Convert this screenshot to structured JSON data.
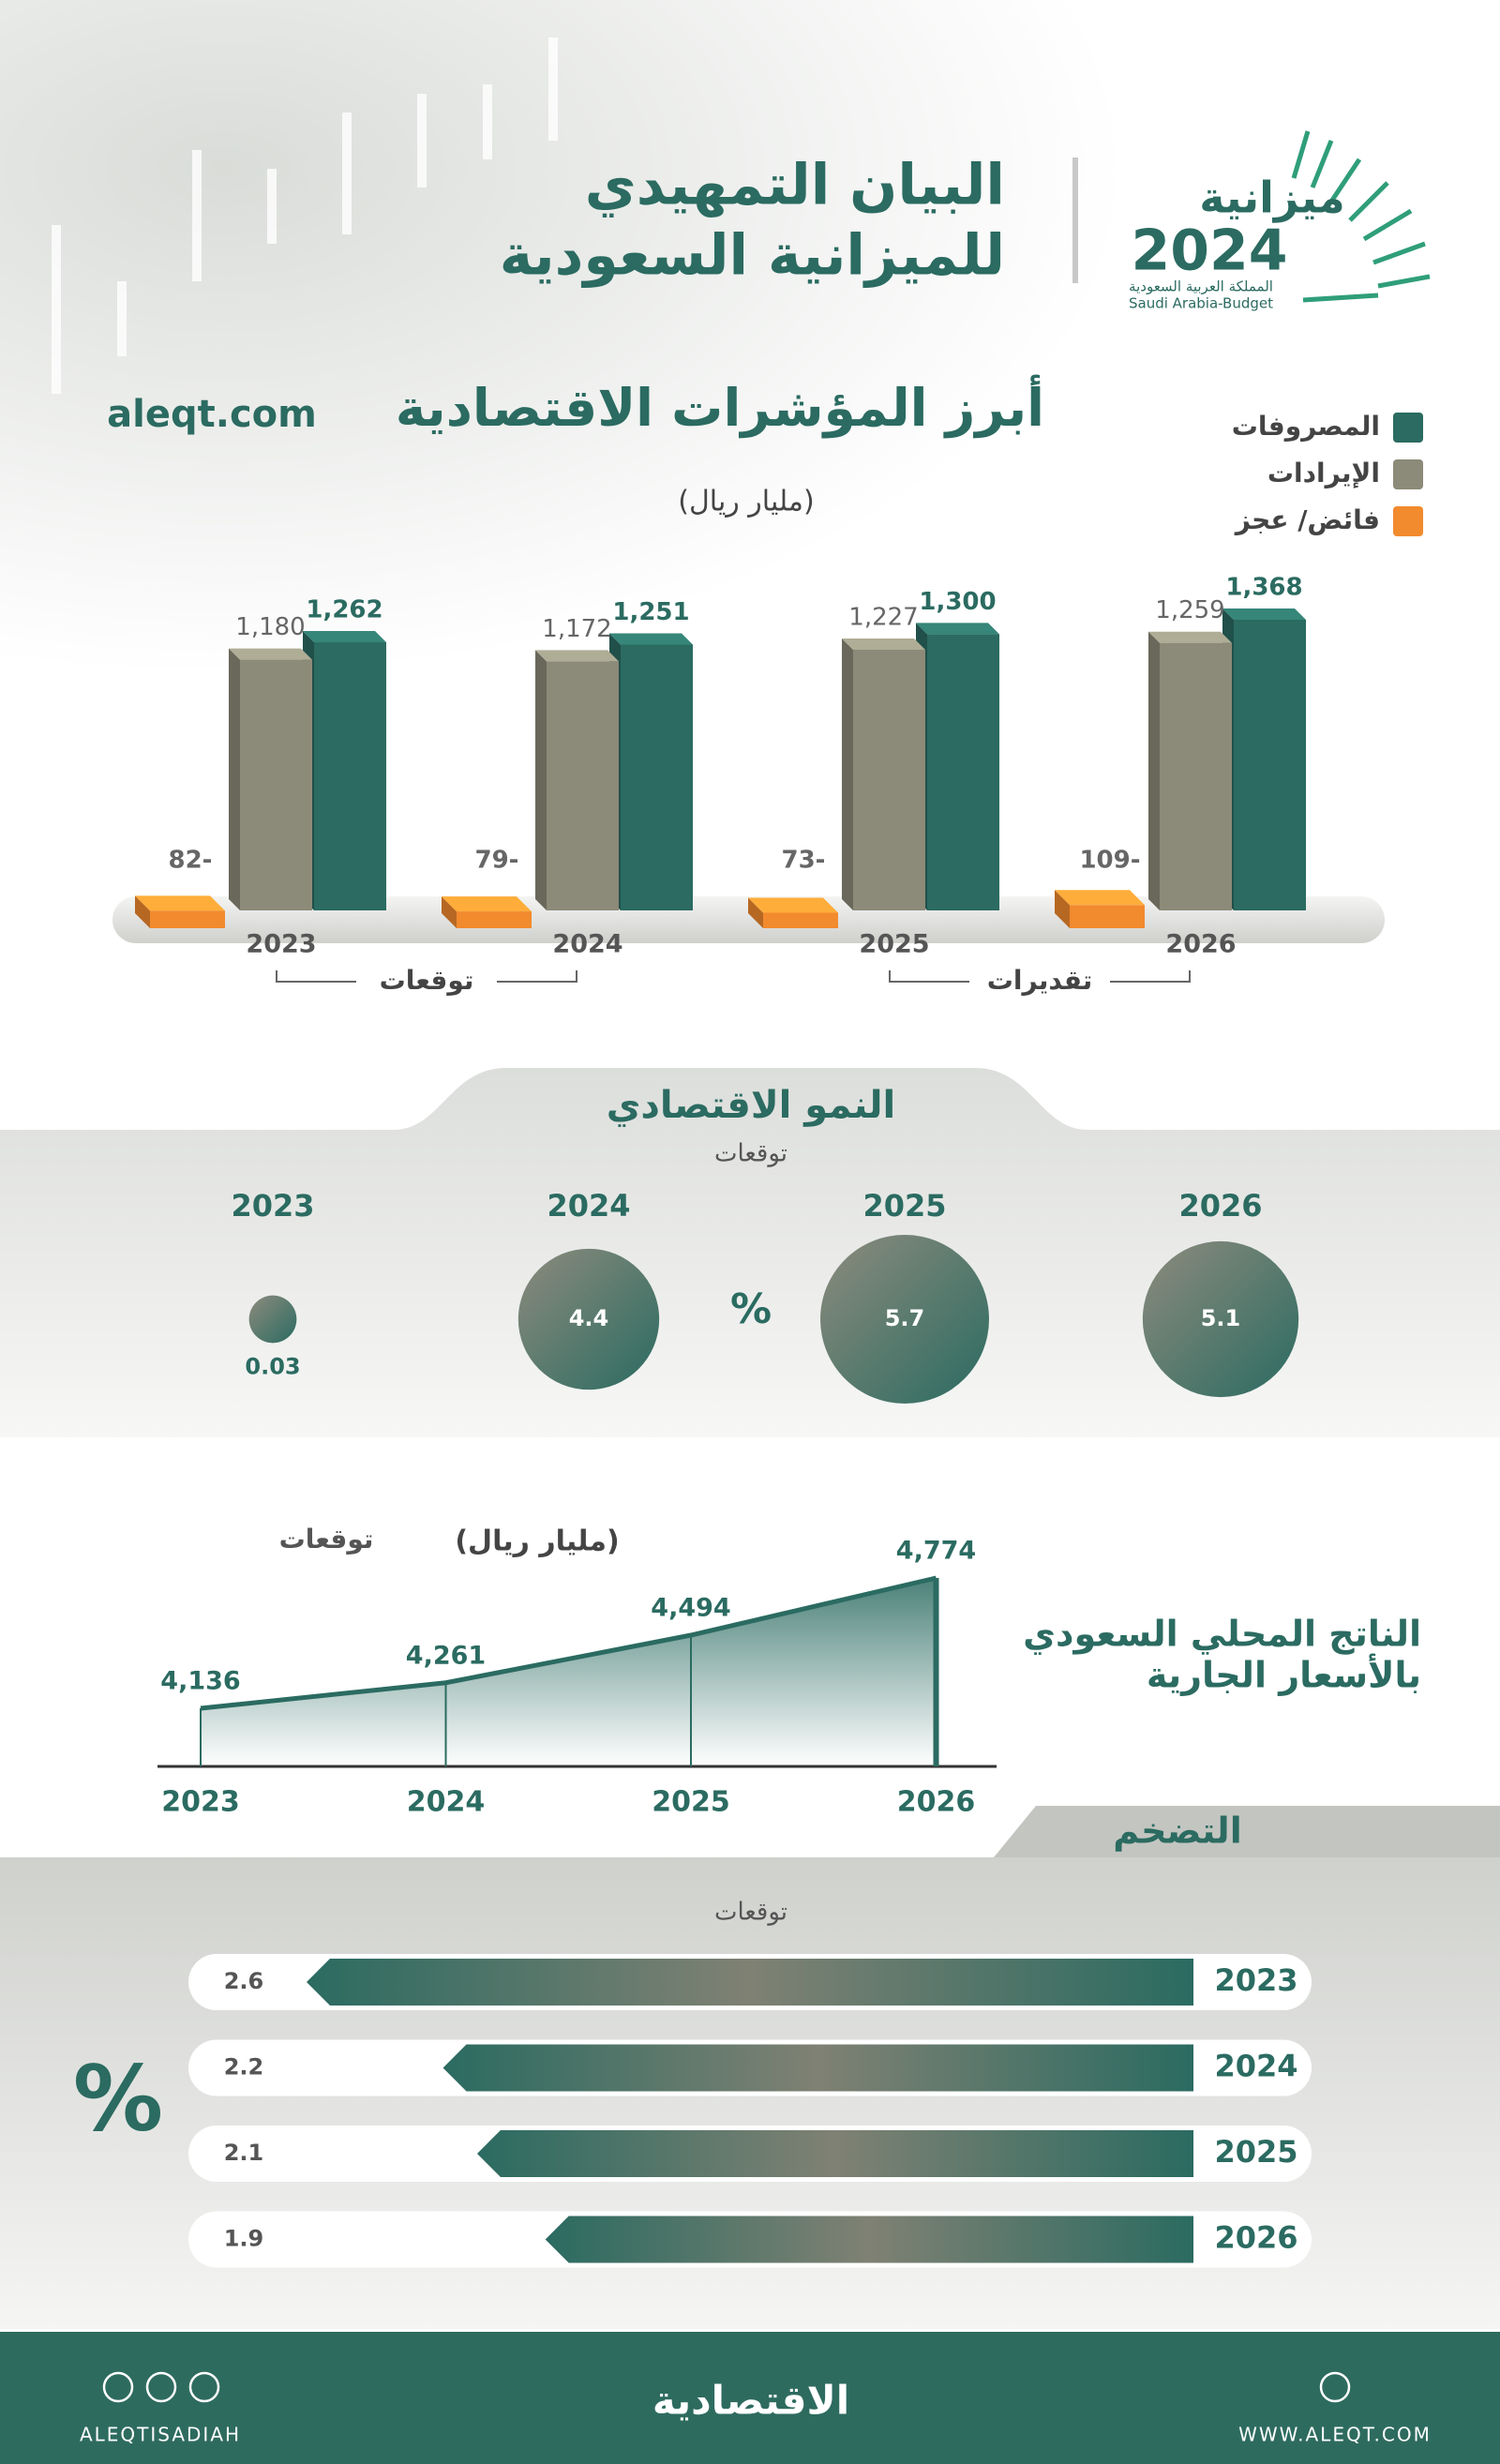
{
  "header": {
    "title": [
      "البيان التمهيدي",
      "للميزانية السعودية"
    ],
    "website": "aleqt.com",
    "logo": {
      "word": "ميزانية",
      "year": "2024",
      "subtitle_ar": "المملكة العربية السعودية",
      "subtitle_en": "Saudi Arabia-Budget"
    }
  },
  "chart_data": [
    {
      "type": "bar",
      "title": "أبرز المؤشرات الاقتصادية",
      "subtitle": "(مليار ريال)",
      "categories": [
        "2023",
        "2024",
        "2025",
        "2026"
      ],
      "series": [
        {
          "name": "المصروفات",
          "color": "#2b6b61",
          "values": [
            1262,
            1251,
            1300,
            1368
          ],
          "value_labels": [
            "1,262",
            "1,251",
            "1,300",
            "1,368"
          ]
        },
        {
          "name": "الإيرادات",
          "color": "#8c8a78",
          "values": [
            1180,
            1172,
            1227,
            1259
          ],
          "value_labels": [
            "1,180",
            "1,172",
            "1,227",
            "1,259"
          ]
        },
        {
          "name": "فائض/ عجز",
          "color": "#f28a2e",
          "values": [
            -82,
            -79,
            -73,
            -109
          ],
          "value_labels": [
            "82-",
            "79-",
            "73-",
            "109-"
          ]
        }
      ],
      "annotations": [
        "توقعات",
        "تقديرات"
      ]
    },
    {
      "type": "bubble",
      "title": "النمو الاقتصادي",
      "subtitle": "توقعات",
      "unit": "%",
      "categories": [
        "2023",
        "2024",
        "2025",
        "2026"
      ],
      "values": [
        0.03,
        4.4,
        5.7,
        5.1
      ]
    },
    {
      "type": "area",
      "title": [
        "الناتج المحلي السعودي",
        "بالأسعار الجارية"
      ],
      "subtitle": "(مليار ريال)",
      "annotation": "توقعات",
      "categories": [
        "2023",
        "2024",
        "2025",
        "2026"
      ],
      "values": [
        4136,
        4261,
        4494,
        4774
      ],
      "value_labels": [
        "4,136",
        "4,261",
        "4,494",
        "4,774"
      ],
      "color": "#2b6b61"
    },
    {
      "type": "hbar",
      "title": "التضخم",
      "subtitle": "توقعات",
      "unit": "%",
      "categories": [
        "2023",
        "2024",
        "2025",
        "2026"
      ],
      "values": [
        2.6,
        2.2,
        2.1,
        1.9
      ]
    }
  ],
  "footer": {
    "brand": "الاقتصادية",
    "handle": "ALEQTISADIAH",
    "website": "WWW.ALEQT.COM"
  }
}
